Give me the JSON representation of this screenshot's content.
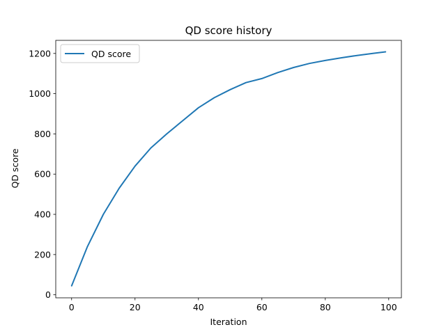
{
  "chart_data": {
    "type": "line",
    "title": "QD score history",
    "xlabel": "Iteration",
    "ylabel": "QD score",
    "xlim": [
      -5,
      104
    ],
    "ylim": [
      -15,
      1265
    ],
    "xticks": [
      0,
      20,
      40,
      60,
      80,
      100
    ],
    "yticks": [
      0,
      200,
      400,
      600,
      800,
      1000,
      1200
    ],
    "grid": false,
    "legend": {
      "position": "upper left",
      "entries": [
        "QD score"
      ]
    },
    "series": [
      {
        "name": "QD score",
        "color": "#1f77b4",
        "x": [
          0,
          5,
          10,
          15,
          20,
          25,
          30,
          35,
          40,
          45,
          50,
          55,
          60,
          65,
          70,
          75,
          80,
          85,
          90,
          95,
          99
        ],
        "y": [
          45,
          240,
          400,
          530,
          640,
          730,
          800,
          865,
          930,
          980,
          1020,
          1055,
          1075,
          1105,
          1130,
          1150,
          1165,
          1178,
          1190,
          1200,
          1208
        ]
      }
    ]
  }
}
